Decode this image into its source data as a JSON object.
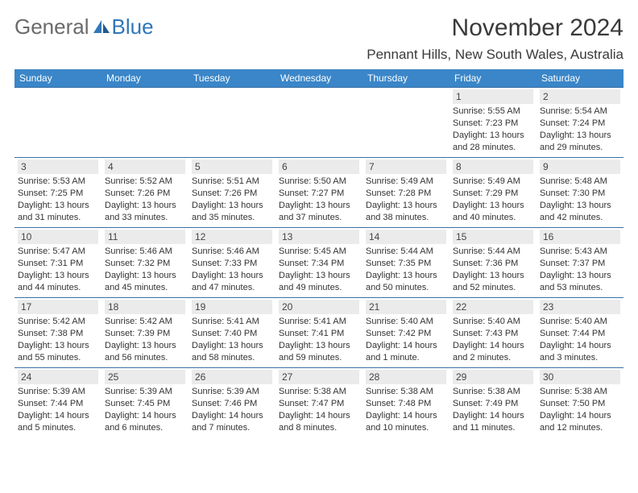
{
  "logo": {
    "word1": "General",
    "word2": "Blue"
  },
  "title": "November 2024",
  "location": "Pennant Hills, New South Wales, Australia",
  "colors": {
    "header_bg": "#3a86c8",
    "header_text": "#ffffff",
    "divider": "#3a6fa5",
    "daynum_bg": "#ebebeb",
    "logo_grey": "#6a6a6a",
    "logo_blue": "#2f77b8"
  },
  "weekdays": [
    "Sunday",
    "Monday",
    "Tuesday",
    "Wednesday",
    "Thursday",
    "Friday",
    "Saturday"
  ],
  "weeks": [
    [
      {
        "n": "",
        "sr": "",
        "ss": "",
        "d1": "",
        "d2": ""
      },
      {
        "n": "",
        "sr": "",
        "ss": "",
        "d1": "",
        "d2": ""
      },
      {
        "n": "",
        "sr": "",
        "ss": "",
        "d1": "",
        "d2": ""
      },
      {
        "n": "",
        "sr": "",
        "ss": "",
        "d1": "",
        "d2": ""
      },
      {
        "n": "",
        "sr": "",
        "ss": "",
        "d1": "",
        "d2": ""
      },
      {
        "n": "1",
        "sr": "Sunrise: 5:55 AM",
        "ss": "Sunset: 7:23 PM",
        "d1": "Daylight: 13 hours",
        "d2": "and 28 minutes."
      },
      {
        "n": "2",
        "sr": "Sunrise: 5:54 AM",
        "ss": "Sunset: 7:24 PM",
        "d1": "Daylight: 13 hours",
        "d2": "and 29 minutes."
      }
    ],
    [
      {
        "n": "3",
        "sr": "Sunrise: 5:53 AM",
        "ss": "Sunset: 7:25 PM",
        "d1": "Daylight: 13 hours",
        "d2": "and 31 minutes."
      },
      {
        "n": "4",
        "sr": "Sunrise: 5:52 AM",
        "ss": "Sunset: 7:26 PM",
        "d1": "Daylight: 13 hours",
        "d2": "and 33 minutes."
      },
      {
        "n": "5",
        "sr": "Sunrise: 5:51 AM",
        "ss": "Sunset: 7:26 PM",
        "d1": "Daylight: 13 hours",
        "d2": "and 35 minutes."
      },
      {
        "n": "6",
        "sr": "Sunrise: 5:50 AM",
        "ss": "Sunset: 7:27 PM",
        "d1": "Daylight: 13 hours",
        "d2": "and 37 minutes."
      },
      {
        "n": "7",
        "sr": "Sunrise: 5:49 AM",
        "ss": "Sunset: 7:28 PM",
        "d1": "Daylight: 13 hours",
        "d2": "and 38 minutes."
      },
      {
        "n": "8",
        "sr": "Sunrise: 5:49 AM",
        "ss": "Sunset: 7:29 PM",
        "d1": "Daylight: 13 hours",
        "d2": "and 40 minutes."
      },
      {
        "n": "9",
        "sr": "Sunrise: 5:48 AM",
        "ss": "Sunset: 7:30 PM",
        "d1": "Daylight: 13 hours",
        "d2": "and 42 minutes."
      }
    ],
    [
      {
        "n": "10",
        "sr": "Sunrise: 5:47 AM",
        "ss": "Sunset: 7:31 PM",
        "d1": "Daylight: 13 hours",
        "d2": "and 44 minutes."
      },
      {
        "n": "11",
        "sr": "Sunrise: 5:46 AM",
        "ss": "Sunset: 7:32 PM",
        "d1": "Daylight: 13 hours",
        "d2": "and 45 minutes."
      },
      {
        "n": "12",
        "sr": "Sunrise: 5:46 AM",
        "ss": "Sunset: 7:33 PM",
        "d1": "Daylight: 13 hours",
        "d2": "and 47 minutes."
      },
      {
        "n": "13",
        "sr": "Sunrise: 5:45 AM",
        "ss": "Sunset: 7:34 PM",
        "d1": "Daylight: 13 hours",
        "d2": "and 49 minutes."
      },
      {
        "n": "14",
        "sr": "Sunrise: 5:44 AM",
        "ss": "Sunset: 7:35 PM",
        "d1": "Daylight: 13 hours",
        "d2": "and 50 minutes."
      },
      {
        "n": "15",
        "sr": "Sunrise: 5:44 AM",
        "ss": "Sunset: 7:36 PM",
        "d1": "Daylight: 13 hours",
        "d2": "and 52 minutes."
      },
      {
        "n": "16",
        "sr": "Sunrise: 5:43 AM",
        "ss": "Sunset: 7:37 PM",
        "d1": "Daylight: 13 hours",
        "d2": "and 53 minutes."
      }
    ],
    [
      {
        "n": "17",
        "sr": "Sunrise: 5:42 AM",
        "ss": "Sunset: 7:38 PM",
        "d1": "Daylight: 13 hours",
        "d2": "and 55 minutes."
      },
      {
        "n": "18",
        "sr": "Sunrise: 5:42 AM",
        "ss": "Sunset: 7:39 PM",
        "d1": "Daylight: 13 hours",
        "d2": "and 56 minutes."
      },
      {
        "n": "19",
        "sr": "Sunrise: 5:41 AM",
        "ss": "Sunset: 7:40 PM",
        "d1": "Daylight: 13 hours",
        "d2": "and 58 minutes."
      },
      {
        "n": "20",
        "sr": "Sunrise: 5:41 AM",
        "ss": "Sunset: 7:41 PM",
        "d1": "Daylight: 13 hours",
        "d2": "and 59 minutes."
      },
      {
        "n": "21",
        "sr": "Sunrise: 5:40 AM",
        "ss": "Sunset: 7:42 PM",
        "d1": "Daylight: 14 hours",
        "d2": "and 1 minute."
      },
      {
        "n": "22",
        "sr": "Sunrise: 5:40 AM",
        "ss": "Sunset: 7:43 PM",
        "d1": "Daylight: 14 hours",
        "d2": "and 2 minutes."
      },
      {
        "n": "23",
        "sr": "Sunrise: 5:40 AM",
        "ss": "Sunset: 7:44 PM",
        "d1": "Daylight: 14 hours",
        "d2": "and 3 minutes."
      }
    ],
    [
      {
        "n": "24",
        "sr": "Sunrise: 5:39 AM",
        "ss": "Sunset: 7:44 PM",
        "d1": "Daylight: 14 hours",
        "d2": "and 5 minutes."
      },
      {
        "n": "25",
        "sr": "Sunrise: 5:39 AM",
        "ss": "Sunset: 7:45 PM",
        "d1": "Daylight: 14 hours",
        "d2": "and 6 minutes."
      },
      {
        "n": "26",
        "sr": "Sunrise: 5:39 AM",
        "ss": "Sunset: 7:46 PM",
        "d1": "Daylight: 14 hours",
        "d2": "and 7 minutes."
      },
      {
        "n": "27",
        "sr": "Sunrise: 5:38 AM",
        "ss": "Sunset: 7:47 PM",
        "d1": "Daylight: 14 hours",
        "d2": "and 8 minutes."
      },
      {
        "n": "28",
        "sr": "Sunrise: 5:38 AM",
        "ss": "Sunset: 7:48 PM",
        "d1": "Daylight: 14 hours",
        "d2": "and 10 minutes."
      },
      {
        "n": "29",
        "sr": "Sunrise: 5:38 AM",
        "ss": "Sunset: 7:49 PM",
        "d1": "Daylight: 14 hours",
        "d2": "and 11 minutes."
      },
      {
        "n": "30",
        "sr": "Sunrise: 5:38 AM",
        "ss": "Sunset: 7:50 PM",
        "d1": "Daylight: 14 hours",
        "d2": "and 12 minutes."
      }
    ]
  ]
}
